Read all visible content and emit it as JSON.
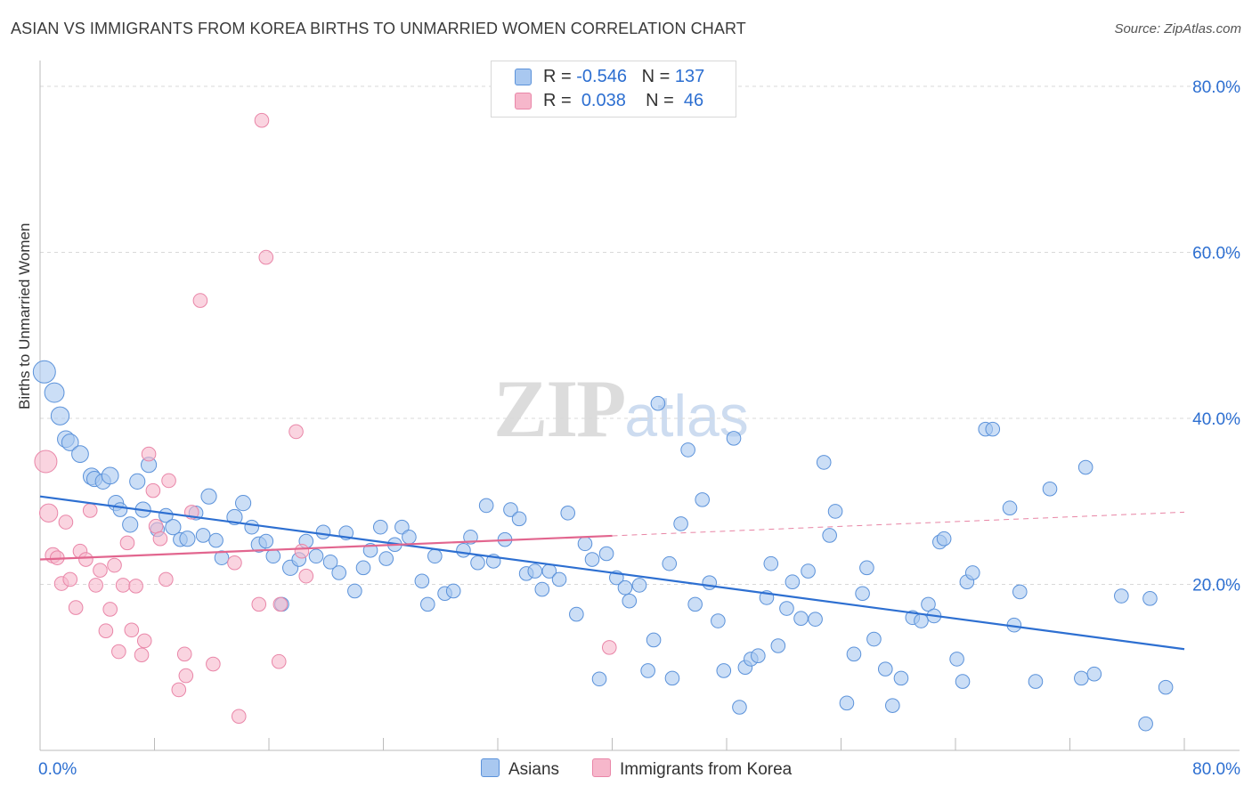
{
  "title": "ASIAN VS IMMIGRANTS FROM KOREA BIRTHS TO UNMARRIED WOMEN CORRELATION CHART",
  "source": "Source: ZipAtlas.com",
  "watermark": {
    "zip": "ZIP",
    "atlas": "atlas"
  },
  "legend": {
    "r_label": "R =",
    "n_label": "N =",
    "rows": [
      {
        "name": "Asians",
        "r": "-0.546",
        "n": "137"
      },
      {
        "name": "Immigrants from Korea",
        "r": "0.038",
        "n": "46"
      }
    ]
  },
  "colors": {
    "asians_fill": "#a9c8f0",
    "asians_stroke": "#5b92da",
    "asians_line": "#2d6fd1",
    "korea_fill": "#f6b7cb",
    "korea_stroke": "#e986a8",
    "korea_line": "#e2668f",
    "tick_text": "#2d6fd1",
    "grid": "#d9d9d9"
  },
  "chart_data": {
    "type": "scatter",
    "title": "ASIAN VS IMMIGRANTS FROM KOREA BIRTHS TO UNMARRIED WOMEN CORRELATION CHART",
    "xlabel": "",
    "ylabel": "Births to Unmarried Women",
    "xlim": [
      0,
      80
    ],
    "ylim": [
      0,
      80
    ],
    "x_tick_labels": [
      "0.0%",
      "80.0%"
    ],
    "y_ticks": [
      20,
      40,
      60,
      80
    ],
    "y_tick_labels": [
      "20.0%",
      "40.0%",
      "60.0%",
      "80.0%"
    ],
    "grid": true,
    "series": [
      {
        "name": "Asians",
        "r": -0.546,
        "n": 137,
        "trend": {
          "x": [
            0,
            80
          ],
          "y": [
            30.6,
            12.2
          ],
          "dashed_from": null
        },
        "points": [
          [
            0.3,
            45.6,
            16
          ],
          [
            1.0,
            43.1,
            14
          ],
          [
            1.4,
            40.3,
            13
          ],
          [
            1.8,
            37.5,
            12
          ],
          [
            2.1,
            37.1,
            12
          ],
          [
            2.8,
            35.7,
            12
          ],
          [
            3.6,
            33.0,
            12
          ],
          [
            3.8,
            32.7,
            11
          ],
          [
            4.4,
            32.4,
            11
          ],
          [
            4.9,
            33.1,
            12
          ],
          [
            5.3,
            29.8,
            11
          ],
          [
            5.6,
            29.0,
            10
          ],
          [
            6.3,
            27.2,
            11
          ],
          [
            6.8,
            32.4,
            11
          ],
          [
            7.2,
            29.0,
            11
          ],
          [
            7.6,
            34.4,
            11
          ],
          [
            8.2,
            26.6,
            10
          ],
          [
            8.8,
            28.3,
            10
          ],
          [
            9.3,
            26.9,
            11
          ],
          [
            9.8,
            25.4,
            10
          ],
          [
            10.3,
            25.5,
            11
          ],
          [
            10.9,
            28.6,
            10
          ],
          [
            11.4,
            25.9,
            10
          ],
          [
            11.8,
            30.6,
            11
          ],
          [
            12.3,
            25.3,
            10
          ],
          [
            12.7,
            23.2,
            10
          ],
          [
            13.6,
            28.1,
            11
          ],
          [
            14.2,
            29.8,
            11
          ],
          [
            14.8,
            26.9,
            10
          ],
          [
            15.3,
            24.8,
            11
          ],
          [
            15.8,
            25.2,
            10
          ],
          [
            16.3,
            23.4,
            10
          ],
          [
            16.9,
            17.6,
            10
          ],
          [
            17.5,
            22.0,
            11
          ],
          [
            18.1,
            23.0,
            10
          ],
          [
            18.6,
            25.2,
            10
          ],
          [
            19.3,
            23.4,
            10
          ],
          [
            19.8,
            26.3,
            10
          ],
          [
            20.3,
            22.7,
            10
          ],
          [
            20.9,
            21.4,
            10
          ],
          [
            21.4,
            26.2,
            10
          ],
          [
            22.0,
            19.2,
            10
          ],
          [
            22.6,
            22.0,
            10
          ],
          [
            23.1,
            24.1,
            10
          ],
          [
            23.8,
            26.9,
            10
          ],
          [
            24.2,
            23.1,
            10
          ],
          [
            24.8,
            24.8,
            10
          ],
          [
            25.3,
            26.9,
            10
          ],
          [
            25.8,
            25.7,
            10
          ],
          [
            26.7,
            20.4,
            10
          ],
          [
            27.1,
            17.6,
            10
          ],
          [
            27.6,
            23.4,
            10
          ],
          [
            28.3,
            18.9,
            10
          ],
          [
            28.9,
            19.2,
            10
          ],
          [
            29.6,
            24.1,
            10
          ],
          [
            30.1,
            25.7,
            10
          ],
          [
            30.6,
            22.6,
            10
          ],
          [
            31.2,
            29.5,
            10
          ],
          [
            31.7,
            22.8,
            10
          ],
          [
            32.5,
            25.4,
            10
          ],
          [
            32.9,
            29.0,
            10
          ],
          [
            33.5,
            27.9,
            10
          ],
          [
            34.0,
            21.3,
            10
          ],
          [
            34.6,
            21.6,
            10
          ],
          [
            35.1,
            19.4,
            10
          ],
          [
            35.6,
            21.6,
            10
          ],
          [
            36.3,
            20.6,
            10
          ],
          [
            36.9,
            28.6,
            10
          ],
          [
            37.5,
            16.4,
            10
          ],
          [
            38.1,
            24.9,
            10
          ],
          [
            38.6,
            23.0,
            10
          ],
          [
            39.1,
            8.6,
            10
          ],
          [
            39.6,
            23.7,
            10
          ],
          [
            40.3,
            20.8,
            10
          ],
          [
            40.9,
            19.6,
            10
          ],
          [
            41.2,
            18.0,
            10
          ],
          [
            41.9,
            19.9,
            10
          ],
          [
            42.5,
            9.6,
            10
          ],
          [
            42.9,
            13.3,
            10
          ],
          [
            43.2,
            41.8,
            10
          ],
          [
            44.0,
            22.5,
            10
          ],
          [
            44.2,
            8.7,
            10
          ],
          [
            44.8,
            27.3,
            10
          ],
          [
            45.3,
            36.2,
            10
          ],
          [
            45.8,
            17.6,
            10
          ],
          [
            46.3,
            30.2,
            10
          ],
          [
            46.8,
            20.2,
            10
          ],
          [
            47.4,
            15.6,
            10
          ],
          [
            47.8,
            9.6,
            10
          ],
          [
            48.5,
            37.6,
            10
          ],
          [
            48.9,
            5.2,
            10
          ],
          [
            49.3,
            10.0,
            10
          ],
          [
            49.7,
            11.0,
            10
          ],
          [
            50.2,
            11.4,
            10
          ],
          [
            50.8,
            18.4,
            10
          ],
          [
            51.1,
            22.5,
            10
          ],
          [
            51.6,
            12.6,
            10
          ],
          [
            52.2,
            17.1,
            10
          ],
          [
            52.6,
            20.3,
            10
          ],
          [
            53.2,
            15.9,
            10
          ],
          [
            53.7,
            21.6,
            10
          ],
          [
            54.2,
            15.8,
            10
          ],
          [
            54.8,
            34.7,
            10
          ],
          [
            55.2,
            25.9,
            10
          ],
          [
            55.6,
            28.8,
            10
          ],
          [
            56.4,
            5.7,
            10
          ],
          [
            56.9,
            11.6,
            10
          ],
          [
            57.5,
            18.9,
            10
          ],
          [
            57.8,
            22.0,
            10
          ],
          [
            58.3,
            13.4,
            10
          ],
          [
            59.1,
            9.8,
            10
          ],
          [
            59.6,
            5.4,
            10
          ],
          [
            60.2,
            8.7,
            10
          ],
          [
            61.0,
            16.0,
            10
          ],
          [
            61.6,
            15.6,
            10
          ],
          [
            62.1,
            17.6,
            10
          ],
          [
            62.5,
            16.2,
            10
          ],
          [
            62.9,
            25.1,
            10
          ],
          [
            63.2,
            25.5,
            10
          ],
          [
            64.1,
            11.0,
            10
          ],
          [
            64.5,
            8.3,
            10
          ],
          [
            64.8,
            20.3,
            10
          ],
          [
            65.2,
            21.4,
            10
          ],
          [
            66.1,
            38.7,
            10
          ],
          [
            66.6,
            38.7,
            10
          ],
          [
            67.8,
            29.2,
            10
          ],
          [
            68.1,
            15.1,
            10
          ],
          [
            68.5,
            19.1,
            10
          ],
          [
            69.6,
            8.3,
            10
          ],
          [
            70.6,
            31.5,
            10
          ],
          [
            72.8,
            8.7,
            10
          ],
          [
            73.1,
            34.1,
            10
          ],
          [
            73.7,
            9.2,
            10
          ],
          [
            75.6,
            18.6,
            10
          ],
          [
            77.3,
            3.2,
            10
          ],
          [
            77.6,
            18.3,
            10
          ],
          [
            78.7,
            7.6,
            10
          ]
        ]
      },
      {
        "name": "Immigrants from Korea",
        "r": 0.038,
        "n": 46,
        "trend": {
          "x": [
            0,
            80
          ],
          "y": [
            23.0,
            28.7
          ],
          "dashed_from": 40.0
        },
        "points": [
          [
            0.4,
            34.8,
            16
          ],
          [
            0.6,
            28.6,
            13
          ],
          [
            0.9,
            23.5,
            11
          ],
          [
            1.2,
            23.2,
            10
          ],
          [
            1.5,
            20.1,
            10
          ],
          [
            1.8,
            27.5,
            10
          ],
          [
            2.1,
            20.6,
            10
          ],
          [
            2.5,
            17.2,
            10
          ],
          [
            2.8,
            24.0,
            10
          ],
          [
            3.2,
            23.0,
            10
          ],
          [
            3.5,
            28.9,
            10
          ],
          [
            3.9,
            19.9,
            10
          ],
          [
            4.2,
            21.7,
            10
          ],
          [
            4.6,
            14.4,
            10
          ],
          [
            4.9,
            17.0,
            10
          ],
          [
            5.2,
            22.3,
            10
          ],
          [
            5.5,
            11.9,
            10
          ],
          [
            5.8,
            19.9,
            10
          ],
          [
            6.1,
            25.0,
            10
          ],
          [
            6.4,
            14.5,
            10
          ],
          [
            6.7,
            19.8,
            10
          ],
          [
            7.1,
            11.5,
            10
          ],
          [
            7.3,
            13.2,
            10
          ],
          [
            7.6,
            35.7,
            10
          ],
          [
            7.9,
            31.3,
            10
          ],
          [
            8.1,
            27.0,
            10
          ],
          [
            8.4,
            25.5,
            10
          ],
          [
            8.8,
            20.6,
            10
          ],
          [
            9.0,
            32.5,
            10
          ],
          [
            9.7,
            7.3,
            10
          ],
          [
            10.1,
            11.6,
            10
          ],
          [
            10.2,
            9.0,
            10
          ],
          [
            10.6,
            28.7,
            10
          ],
          [
            11.2,
            54.2,
            10
          ],
          [
            12.1,
            10.4,
            10
          ],
          [
            13.6,
            22.6,
            10
          ],
          [
            13.9,
            4.1,
            10
          ],
          [
            15.3,
            17.6,
            10
          ],
          [
            15.5,
            75.9,
            10
          ],
          [
            15.8,
            59.4,
            10
          ],
          [
            16.7,
            10.7,
            10
          ],
          [
            16.8,
            17.6,
            10
          ],
          [
            17.9,
            38.4,
            10
          ],
          [
            18.6,
            21.0,
            10
          ],
          [
            39.8,
            12.4,
            10
          ],
          [
            18.3,
            24.0,
            10
          ]
        ]
      }
    ]
  }
}
